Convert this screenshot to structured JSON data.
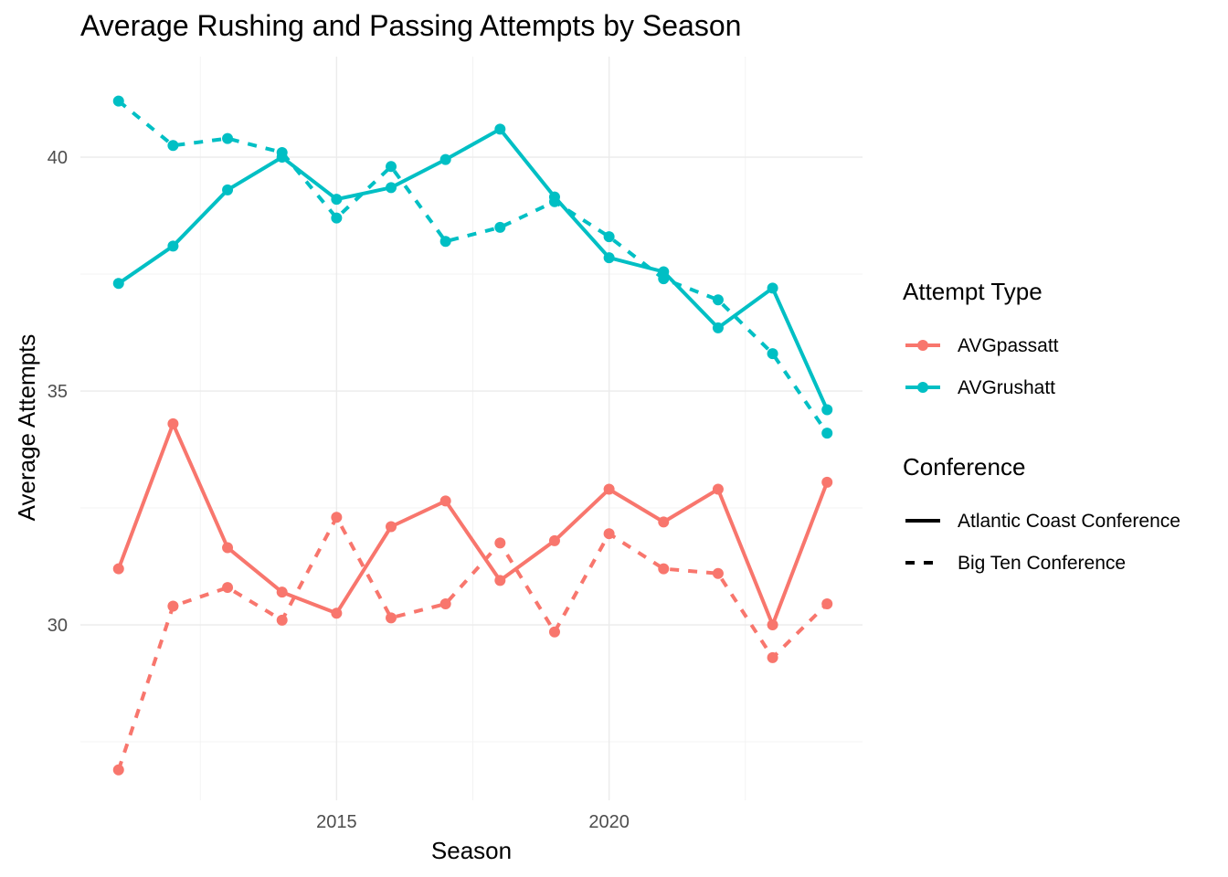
{
  "chart_data": {
    "type": "line",
    "title": "Average Rushing and Passing Attempts by Season",
    "xlabel": "Season",
    "ylabel": "Average Attempts",
    "x": [
      2011,
      2012,
      2013,
      2014,
      2015,
      2016,
      2017,
      2018,
      2019,
      2020,
      2021,
      2022,
      2023,
      2024
    ],
    "xlim": [
      2010.3,
      2024.65
    ],
    "ylim": [
      26.25,
      42.15
    ],
    "x_ticks": [
      2015,
      2020
    ],
    "x_tick_labels": [
      "2015",
      "2020"
    ],
    "y_ticks": [
      30,
      35,
      40
    ],
    "y_tick_labels": [
      "30",
      "35",
      "40"
    ],
    "grid": true,
    "legend_position": "right",
    "legend": {
      "attempt_type": {
        "title": "Attempt Type",
        "entries": [
          {
            "label": "AVGpassatt",
            "color": "#F8766D"
          },
          {
            "label": "AVGrushatt",
            "color": "#00BFC4"
          }
        ]
      },
      "conference": {
        "title": "Conference",
        "entries": [
          {
            "label": "Atlantic Coast Conference",
            "linetype": "solid"
          },
          {
            "label": "Big Ten Conference",
            "linetype": "dashed"
          }
        ]
      }
    },
    "series": [
      {
        "attempt_type": "AVGrushatt",
        "conference": "Atlantic Coast Conference",
        "color": "#00BFC4",
        "linetype": "solid",
        "values": [
          37.3,
          38.1,
          39.3,
          40.0,
          39.1,
          39.35,
          39.95,
          40.6,
          39.15,
          37.85,
          37.55,
          36.35,
          37.2,
          34.6
        ]
      },
      {
        "attempt_type": "AVGrushatt",
        "conference": "Big Ten Conference",
        "color": "#00BFC4",
        "linetype": "dashed",
        "values": [
          41.2,
          40.25,
          40.4,
          40.1,
          38.7,
          39.8,
          38.2,
          38.5,
          39.05,
          38.3,
          37.4,
          36.95,
          35.8,
          34.1
        ]
      },
      {
        "attempt_type": "AVGpassatt",
        "conference": "Atlantic Coast Conference",
        "color": "#F8766D",
        "linetype": "solid",
        "values": [
          31.2,
          34.3,
          31.65,
          30.7,
          30.25,
          32.1,
          32.65,
          30.95,
          31.8,
          32.9,
          32.2,
          32.9,
          30.0,
          33.05
        ]
      },
      {
        "attempt_type": "AVGpassatt",
        "conference": "Big Ten Conference",
        "color": "#F8766D",
        "linetype": "dashed",
        "values": [
          26.9,
          30.4,
          30.8,
          30.1,
          32.3,
          30.15,
          30.45,
          31.75,
          29.85,
          31.95,
          31.2,
          31.1,
          29.3,
          30.45
        ]
      }
    ]
  }
}
